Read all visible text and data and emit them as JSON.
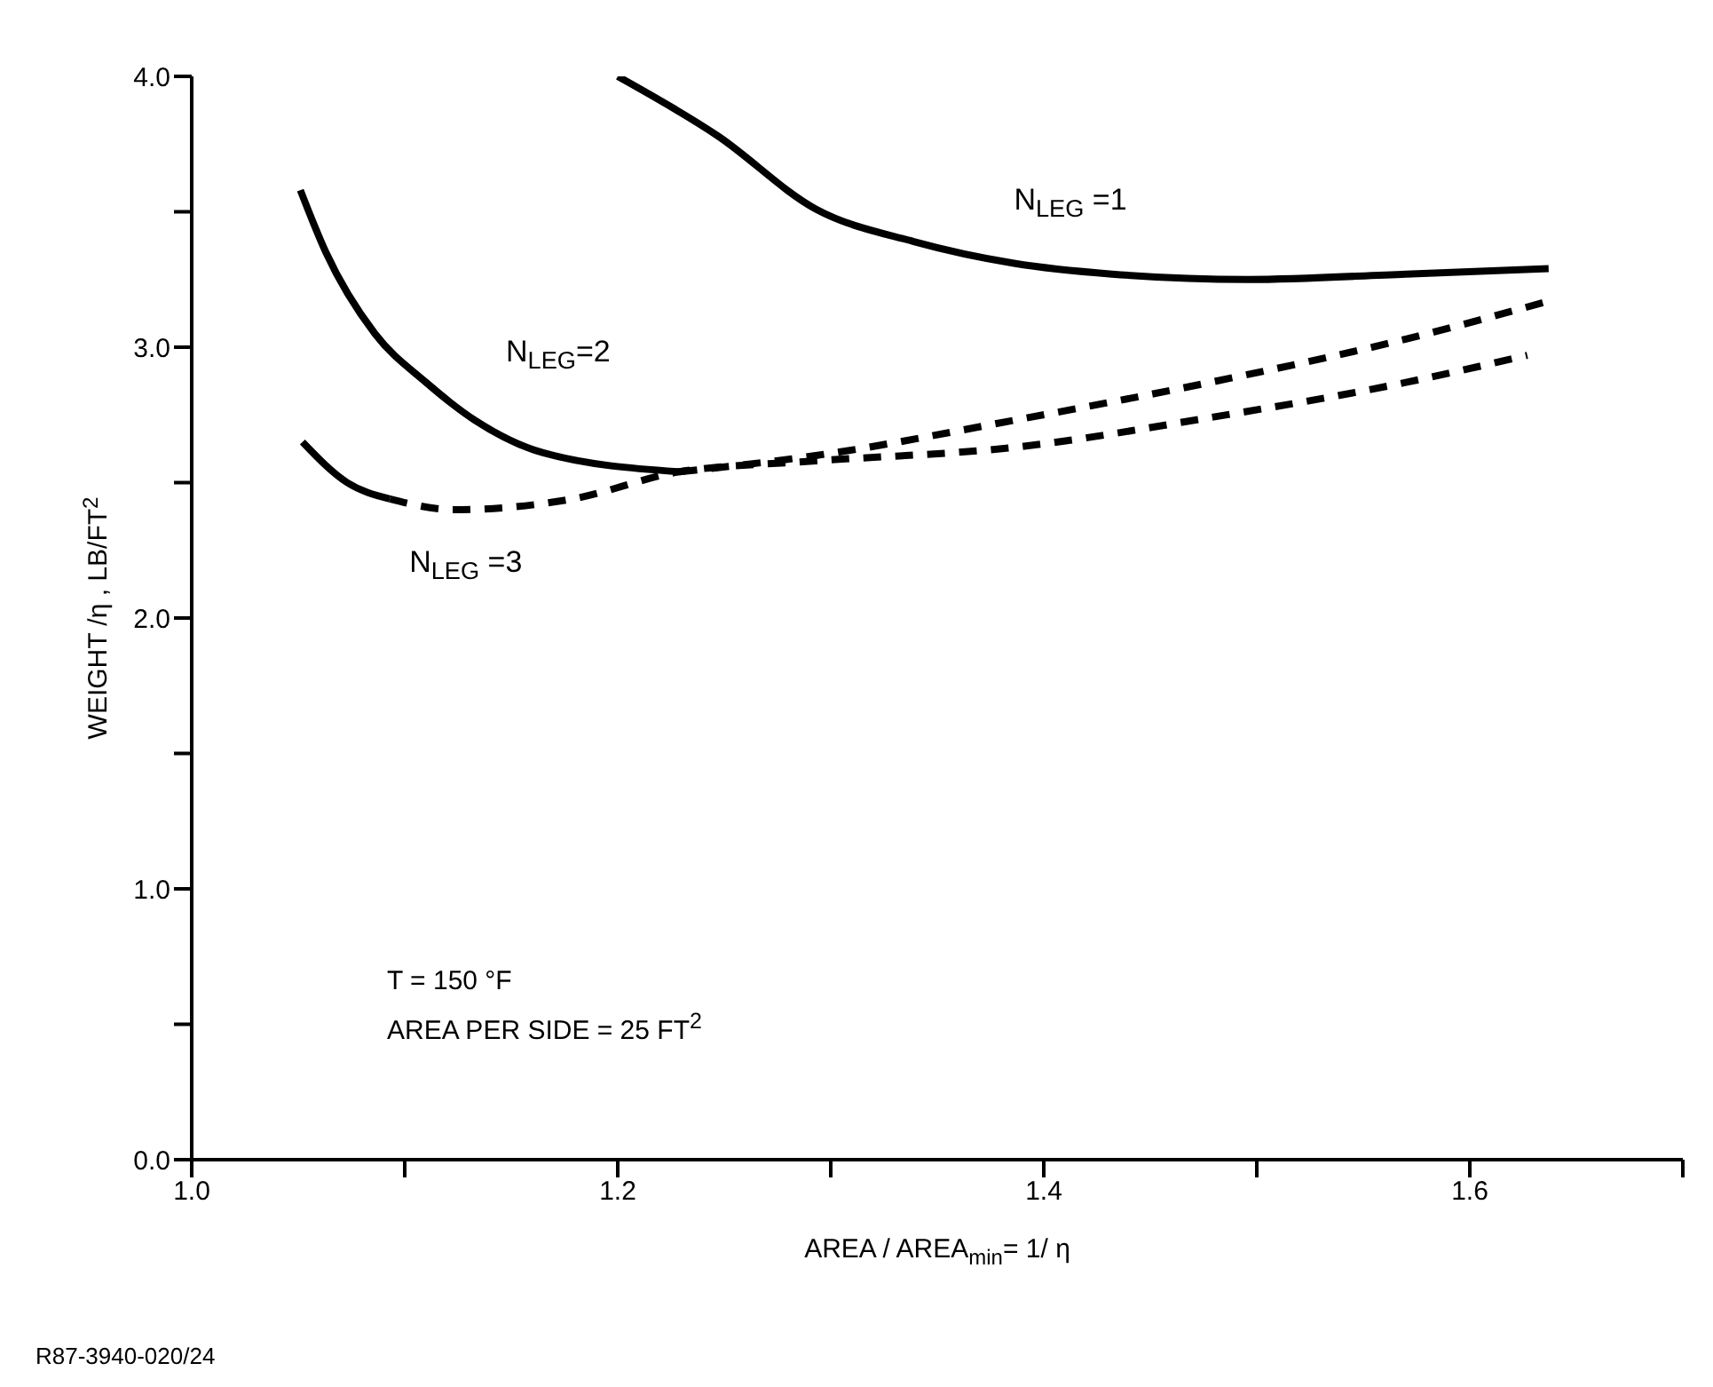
{
  "chart_data": {
    "type": "line",
    "xlabel": "AREA / AREA$_{min}$= 1/ η",
    "ylabel": "WEIGHT /η , LB/FT$^{2}$",
    "xlim": [
      1.0,
      1.7
    ],
    "ylim": [
      0,
      4
    ],
    "xticks": [
      {
        "value": 1.0,
        "label": "1.0"
      },
      {
        "value": 1.1,
        "label": null
      },
      {
        "value": 1.2,
        "label": "1.2"
      },
      {
        "value": 1.3,
        "label": null
      },
      {
        "value": 1.4,
        "label": "1.4"
      },
      {
        "value": 1.5,
        "label": null
      },
      {
        "value": 1.6,
        "label": "1.6"
      },
      {
        "value": 1.7,
        "label": null
      }
    ],
    "yticks": [
      {
        "value": 0,
        "label": "0.0"
      },
      {
        "value": 0.5,
        "label": null
      },
      {
        "value": 1,
        "label": "1.0"
      },
      {
        "value": 1.5,
        "label": null
      },
      {
        "value": 2,
        "label": "2.0"
      },
      {
        "value": 2.5,
        "label": null
      },
      {
        "value": 3,
        "label": "3.0"
      },
      {
        "value": 3.5,
        "label": null
      },
      {
        "value": 4,
        "label": "4.0"
      }
    ],
    "grid": false,
    "legend": false,
    "marker": "none",
    "series": [
      {
        "name": "N$_{LEG}$ =1",
        "color": "#000000",
        "line_style": "solid",
        "x": [
          1.2,
          1.247,
          1.293,
          1.339,
          1.386,
          1.432,
          1.496,
          1.57,
          1.637
        ],
        "values": [
          4.0,
          3.78,
          3.51,
          3.39,
          3.31,
          3.27,
          3.25,
          3.27,
          3.29
        ]
      },
      {
        "name": "N$_{LEG}$=2",
        "color": "#000000",
        "line_style": "solid",
        "x": [
          1.051,
          1.063,
          1.086,
          1.11,
          1.133,
          1.165,
          1.229
        ],
        "values": [
          3.58,
          3.35,
          3.05,
          2.87,
          2.73,
          2.61,
          2.54
        ]
      },
      {
        "name": "N$_{LEG}$ =3",
        "color": "#000000",
        "line_style": "solid",
        "x": [
          1.052,
          1.073,
          1.093
        ],
        "values": [
          2.65,
          2.5,
          2.44
        ]
      },
      {
        "color": "#000000",
        "line_style": "dashed",
        "x": [
          1.229,
          1.293,
          1.386,
          1.478,
          1.57,
          1.637
        ],
        "values": [
          2.54,
          2.6,
          2.73,
          2.87,
          3.03,
          3.17
        ]
      },
      {
        "color": "#000000",
        "line_style": "dashed",
        "x": [
          1.093,
          1.123,
          1.179,
          1.229,
          1.293,
          1.386,
          1.478,
          1.57,
          1.627
        ],
        "values": [
          2.44,
          2.4,
          2.44,
          2.54,
          2.58,
          2.63,
          2.74,
          2.87,
          2.97
        ]
      }
    ],
    "annotations": [
      "T = 150 °F",
      "AREA PER SIDE = 25 FT$^{2}$",
      "R87-3940-020/24"
    ]
  }
}
